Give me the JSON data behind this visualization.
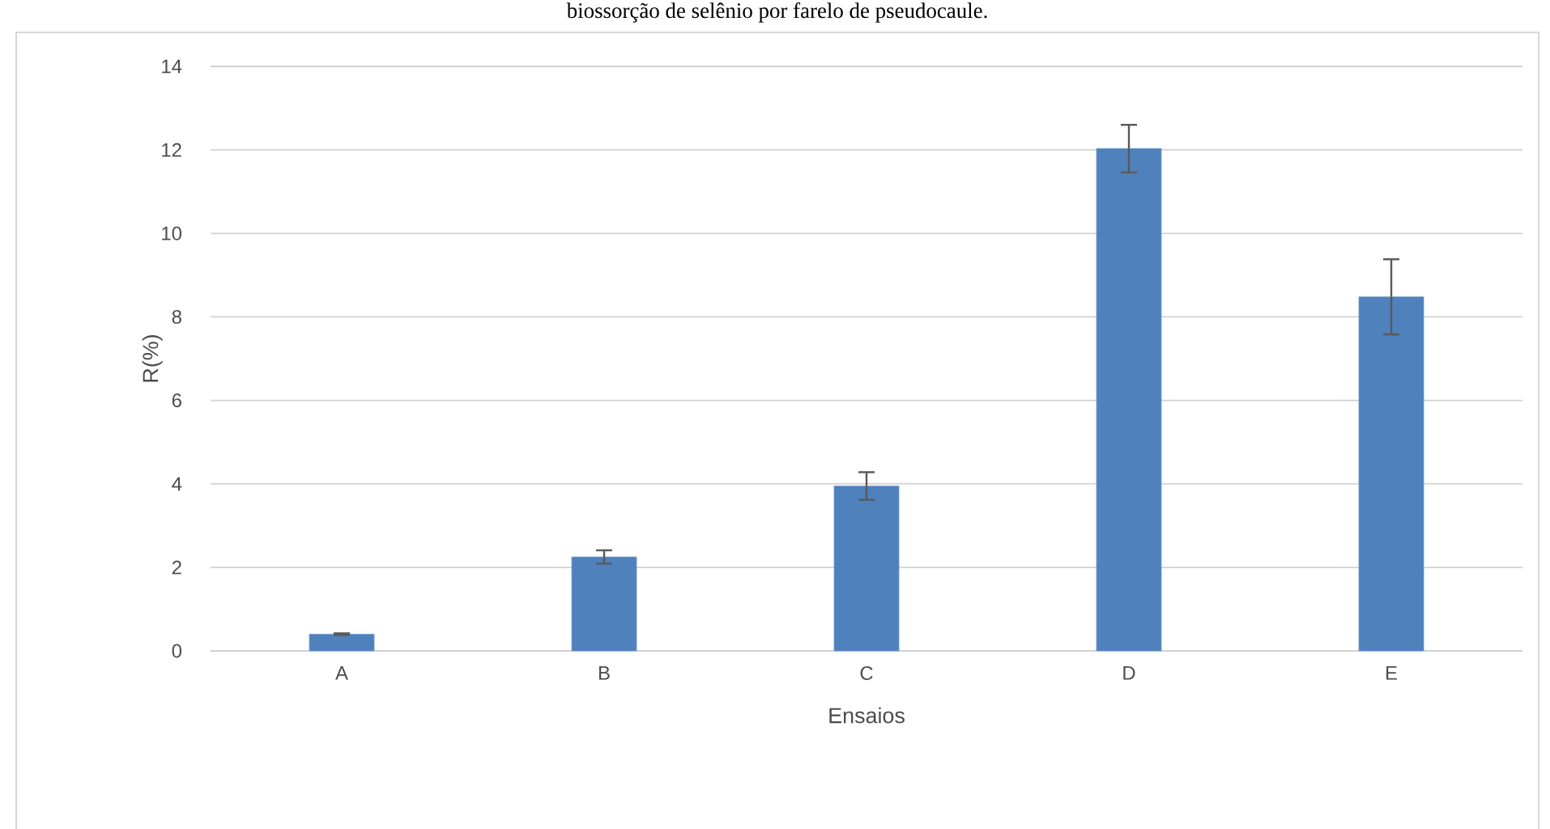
{
  "chart_data": {
    "type": "bar",
    "title": "biossorção de selênio por farelo de pseudocaule.",
    "xlabel": "Ensaios",
    "ylabel": "R(%)",
    "categories": [
      "A",
      "B",
      "C",
      "D",
      "E"
    ],
    "values": [
      0.4,
      2.25,
      3.95,
      12.03,
      8.48
    ],
    "errors": [
      0.02,
      0.16,
      0.33,
      0.57,
      0.9
    ],
    "color": "#4f81bd",
    "ylim": [
      0,
      14
    ],
    "yticks": [
      0,
      2,
      4,
      6,
      8,
      10,
      12,
      14
    ],
    "grid": "y",
    "legend": false
  }
}
